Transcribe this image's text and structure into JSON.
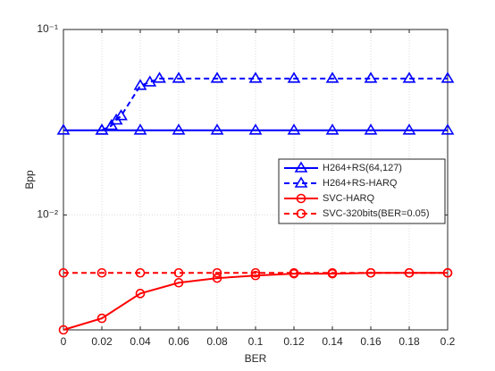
{
  "chart_data": {
    "type": "line",
    "x_label": "BER",
    "y_label": "Bpp",
    "xlim": [
      0,
      0.2
    ],
    "xticks": [
      0,
      0.02,
      0.04,
      0.06,
      0.08,
      0.1,
      0.12,
      0.14,
      0.16,
      0.18,
      0.2
    ],
    "ylim": [
      0.0024,
      0.1
    ],
    "y_log": true,
    "yticks": [
      {
        "value": 0.01,
        "label": "10⁻²"
      },
      {
        "value": 0.1,
        "label": "10⁻¹"
      }
    ],
    "grid": true,
    "legend": "east",
    "series": [
      {
        "name": "H264+RS(64,127)",
        "color": "#0000ff",
        "linestyle": "solid",
        "marker": "triangle",
        "x": [
          0,
          0.02,
          0.04,
          0.06,
          0.08,
          0.1,
          0.12,
          0.14,
          0.16,
          0.18,
          0.2
        ],
        "values": [
          0.0286,
          0.0286,
          0.0286,
          0.0286,
          0.0286,
          0.0286,
          0.0286,
          0.0286,
          0.0286,
          0.0286,
          0.0286
        ]
      },
      {
        "name": "H264+RS-HARQ",
        "color": "#0000ff",
        "linestyle": "dashed",
        "marker": "triangle",
        "x": [
          0.02,
          0.025,
          0.0275,
          0.03,
          0.04,
          0.045,
          0.05,
          0.06,
          0.08,
          0.1,
          0.12,
          0.14,
          0.16,
          0.18,
          0.2
        ],
        "values": [
          0.0286,
          0.0303,
          0.0324,
          0.0342,
          0.0498,
          0.052,
          0.0544,
          0.0544,
          0.0544,
          0.0544,
          0.0544,
          0.0544,
          0.0544,
          0.0544,
          0.0544
        ]
      },
      {
        "name": "SVC-HARQ",
        "color": "#ff0000",
        "linestyle": "solid",
        "marker": "circle",
        "x": [
          0,
          0.02,
          0.04,
          0.06,
          0.08,
          0.1,
          0.12,
          0.14,
          0.16,
          0.18,
          0.2
        ],
        "values": [
          0.0024,
          0.00277,
          0.00377,
          0.00431,
          0.00456,
          0.00471,
          0.00482,
          0.00482,
          0.00487,
          0.00487,
          0.00487
        ]
      },
      {
        "name": "SVC-320bits(BER=0.05)",
        "color": "#ff0000",
        "linestyle": "dashed",
        "marker": "circle",
        "x": [
          0,
          0.02,
          0.04,
          0.06,
          0.08,
          0.1,
          0.12,
          0.14,
          0.16,
          0.18,
          0.2
        ],
        "values": [
          0.00487,
          0.00487,
          0.00487,
          0.00487,
          0.00487,
          0.00487,
          0.00487,
          0.00487,
          0.00487,
          0.00487,
          0.00487
        ]
      }
    ]
  }
}
